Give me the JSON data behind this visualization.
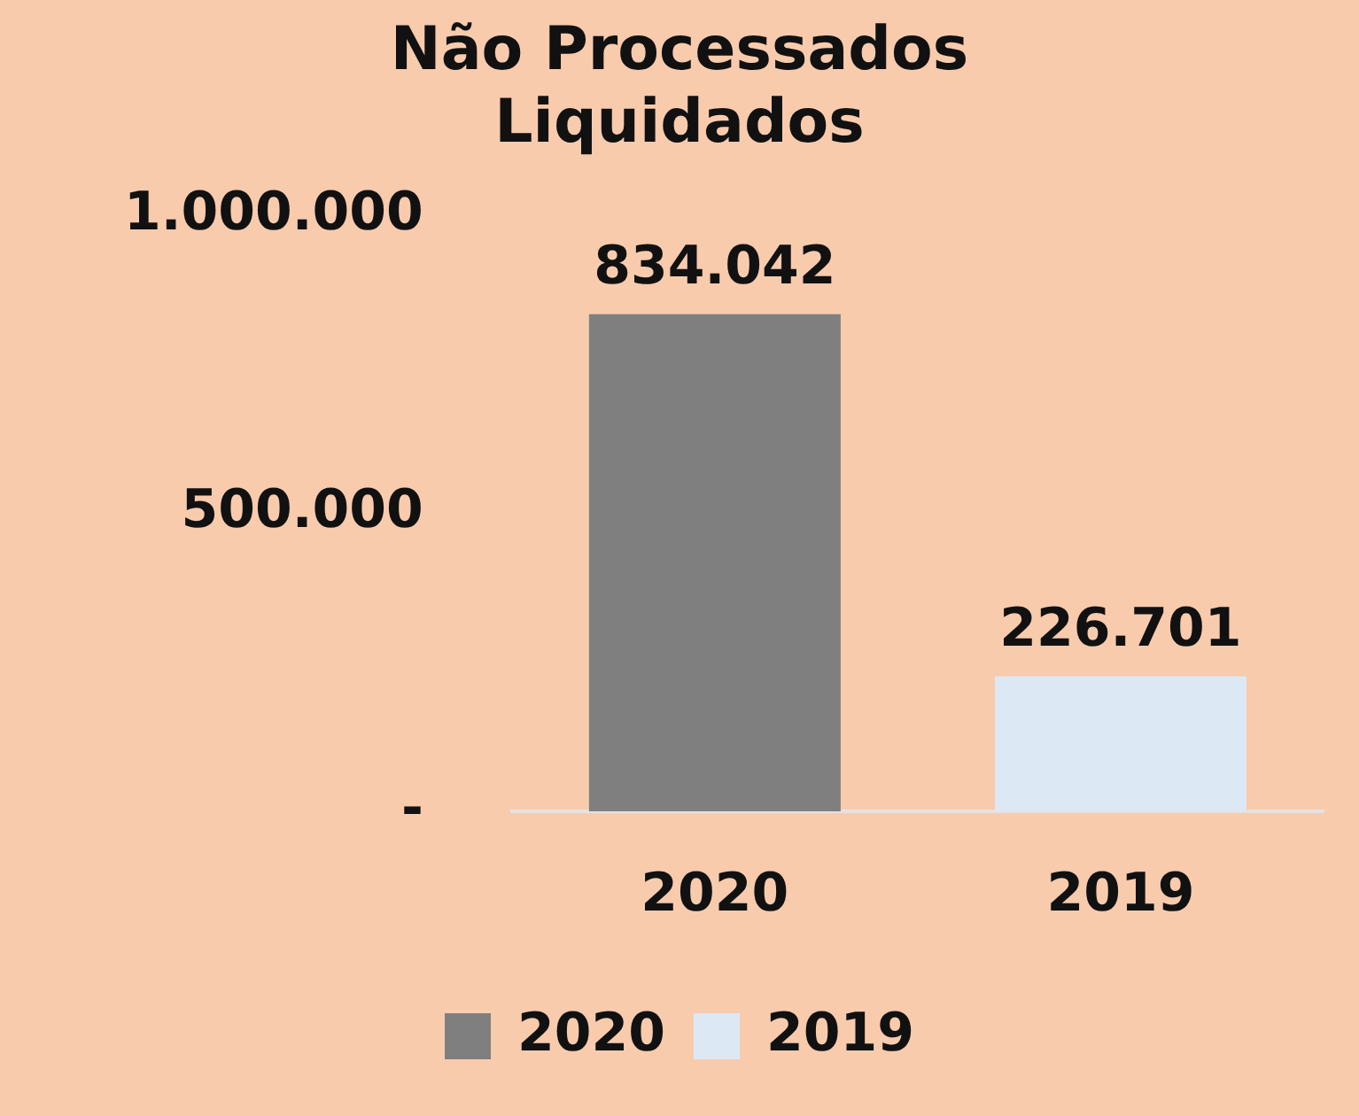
{
  "chart_data": {
    "type": "bar",
    "title": "Não Processados Liquidados",
    "categories": [
      "2020",
      "2019"
    ],
    "series": [
      {
        "name": "2020",
        "color": "#7f7f7f",
        "values": [
          834042,
          null
        ],
        "value_labels": [
          "834.042",
          null
        ]
      },
      {
        "name": "2019",
        "color": "#dde8f5",
        "values": [
          null,
          226701
        ],
        "value_labels": [
          null,
          "226.701"
        ]
      }
    ],
    "ylim": [
      0,
      1000000
    ],
    "yticks": [
      {
        "value": 0,
        "label": "-"
      },
      {
        "value": 500000,
        "label": "500.000"
      },
      {
        "value": 1000000,
        "label": "1.000.000"
      }
    ],
    "grid": false,
    "legend": "bottom"
  }
}
